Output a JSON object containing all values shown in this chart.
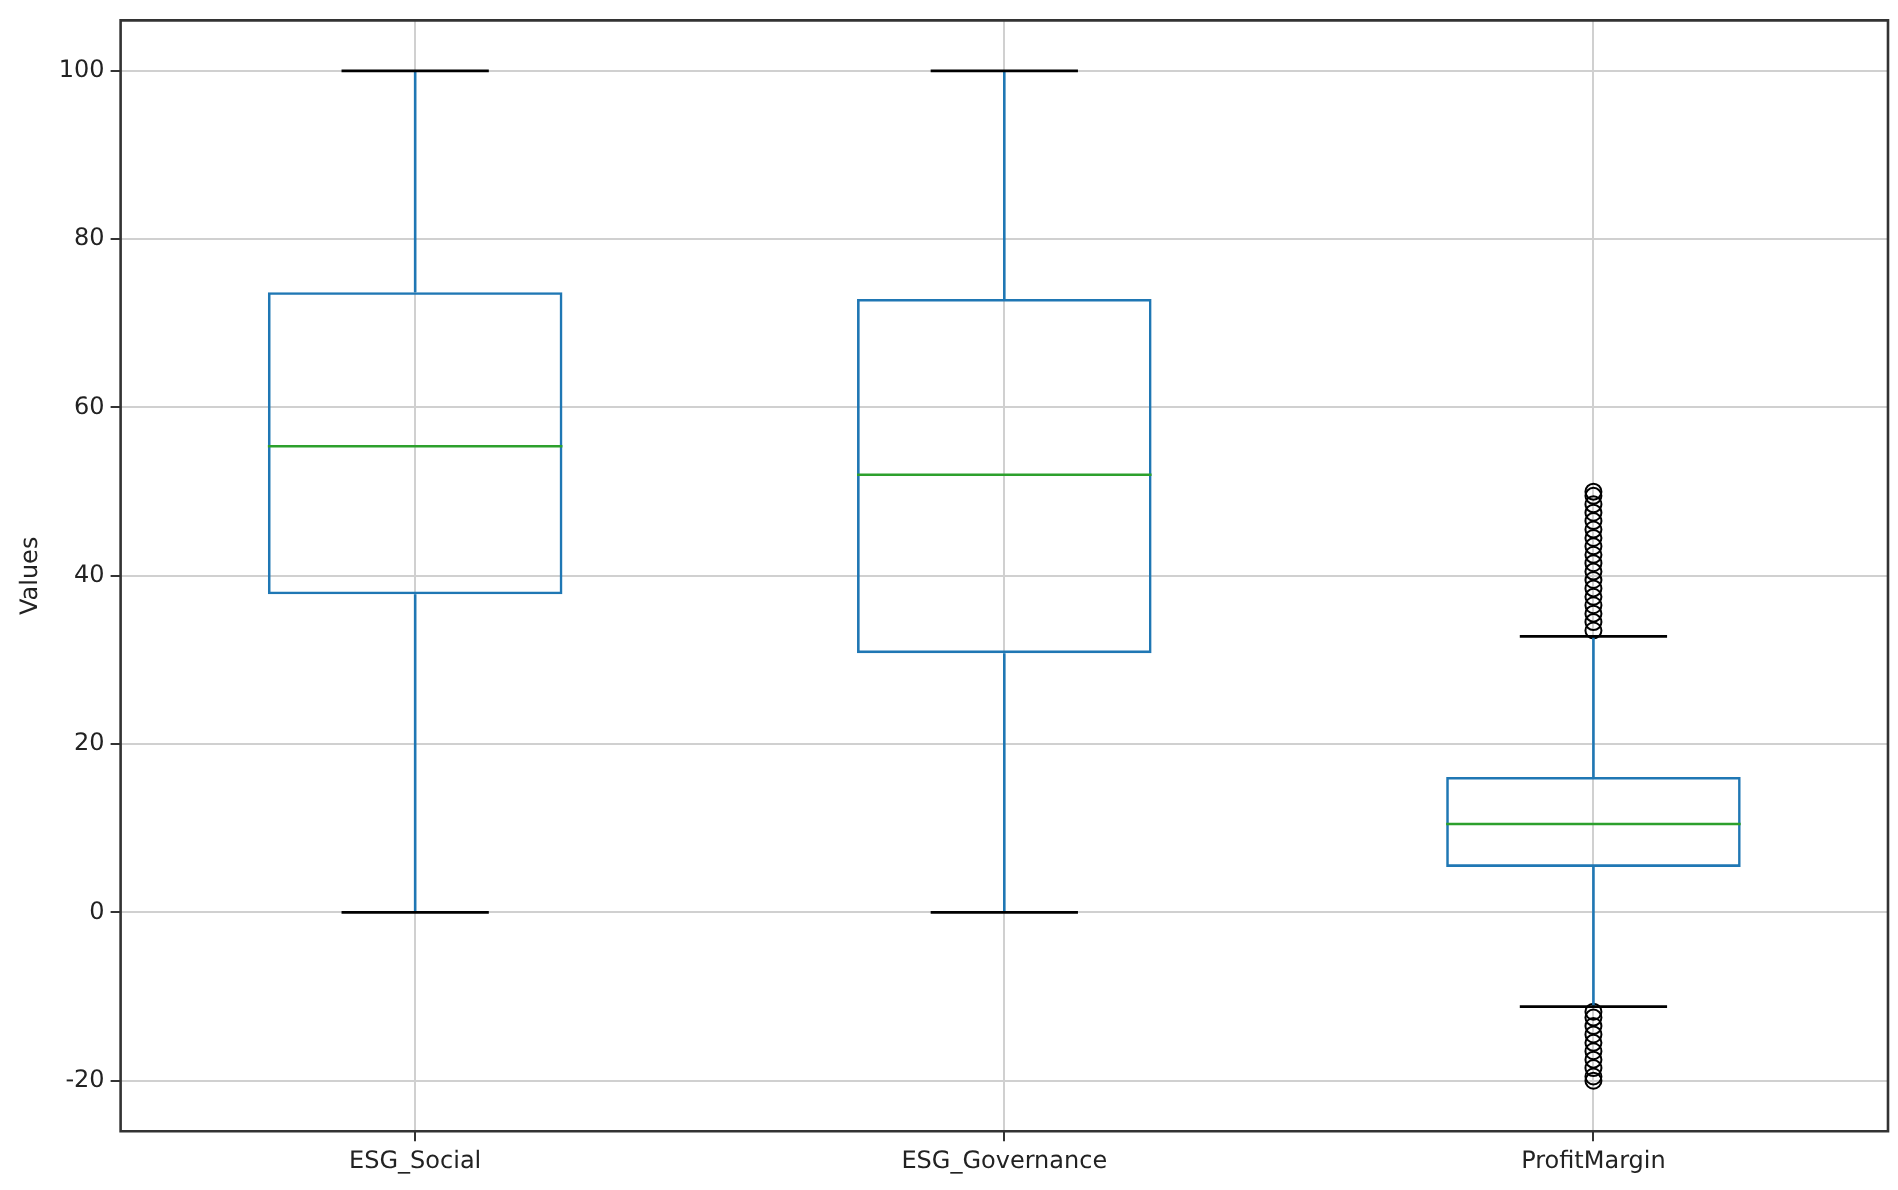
{
  "chart_data": {
    "type": "box",
    "ylabel": "Values",
    "categories": [
      "ESG_Social",
      "ESG_Governance",
      "ProfitMargin"
    ],
    "boxes": [
      {
        "low": 0,
        "q1": 37.8,
        "median": 55.4,
        "q3": 73.7,
        "high": 100
      },
      {
        "low": 0,
        "q1": 30.8,
        "median": 52,
        "q3": 72.9,
        "high": 100
      },
      {
        "low": -11.2,
        "q1": 5.4,
        "median": 10.5,
        "q3": 16.1,
        "high": 32.8,
        "outliers": [
          33.5,
          34.5,
          35.5,
          36.5,
          37.5,
          38.5,
          39.5,
          40.5,
          41.5,
          42.5,
          43.5,
          44.5,
          45.5,
          46.5,
          47.5,
          48.5,
          49.5,
          50,
          -11.8,
          -12.5,
          -13.5,
          -14.5,
          -15.5,
          -16.5,
          -17.5,
          -18.5,
          -19.5,
          -20
        ]
      }
    ],
    "color": "#1f77b4",
    "ylim": [
      -26,
      106
    ],
    "yticks": [
      -20,
      0,
      20,
      40,
      60,
      80,
      100
    ],
    "grid": true,
    "legend": false
  }
}
